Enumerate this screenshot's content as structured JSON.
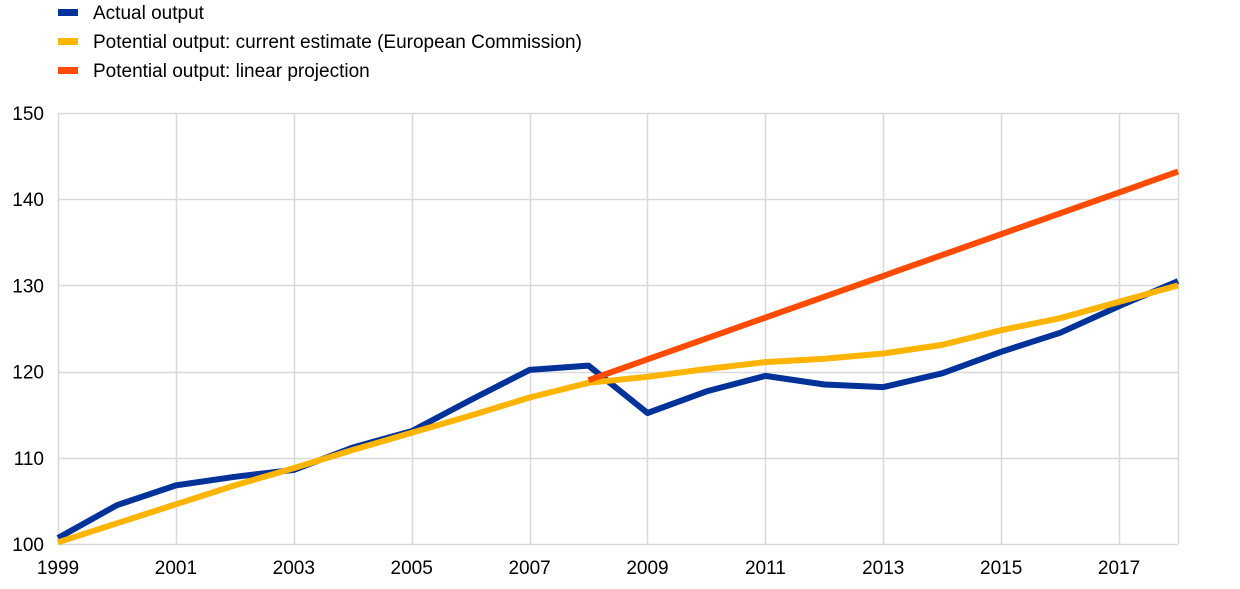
{
  "chart_data": {
    "type": "line",
    "title": "",
    "xlabel": "",
    "ylabel": "",
    "x": [
      1999,
      2000,
      2001,
      2002,
      2003,
      2004,
      2005,
      2006,
      2007,
      2008,
      2009,
      2010,
      2011,
      2012,
      2013,
      2014,
      2015,
      2016,
      2017,
      2018
    ],
    "xlim": [
      1999,
      2018
    ],
    "ylim": [
      100,
      150
    ],
    "x_ticks": [
      "1999",
      "2001",
      "2003",
      "2005",
      "2007",
      "2009",
      "2011",
      "2013",
      "2015",
      "2017"
    ],
    "y_ticks": [
      "100",
      "110",
      "120",
      "130",
      "140",
      "150"
    ],
    "grid": true,
    "legend_position": "top-left",
    "series": [
      {
        "name": "Actual output",
        "color": "#003299",
        "x": [
          1999,
          2000,
          2001,
          2002,
          2003,
          2004,
          2005,
          2006,
          2007,
          2008,
          2009,
          2010,
          2011,
          2012,
          2013,
          2014,
          2015,
          2016,
          2017,
          2018
        ],
        "values": [
          100.7,
          104.5,
          106.8,
          107.8,
          108.6,
          111.2,
          113.1,
          116.7,
          120.2,
          120.7,
          115.2,
          117.7,
          119.5,
          118.5,
          118.2,
          119.8,
          122.3,
          124.5,
          127.6,
          130.5
        ]
      },
      {
        "name": "Potential output: current estimate (European Commission)",
        "color": "#FFB400",
        "x": [
          1999,
          2000,
          2001,
          2002,
          2003,
          2004,
          2005,
          2006,
          2007,
          2008,
          2009,
          2010,
          2011,
          2012,
          2013,
          2014,
          2015,
          2016,
          2017,
          2018
        ],
        "values": [
          100.2,
          102.4,
          104.6,
          106.8,
          108.8,
          110.9,
          112.9,
          114.9,
          117.0,
          118.7,
          119.4,
          120.3,
          121.1,
          121.5,
          122.1,
          123.1,
          124.8,
          126.2,
          128.1,
          130.0
        ]
      },
      {
        "name": "Potential output: linear projection",
        "color": "#FF4B00",
        "x": [
          2008,
          2018
        ],
        "values": [
          119.0,
          143.2
        ]
      }
    ]
  }
}
